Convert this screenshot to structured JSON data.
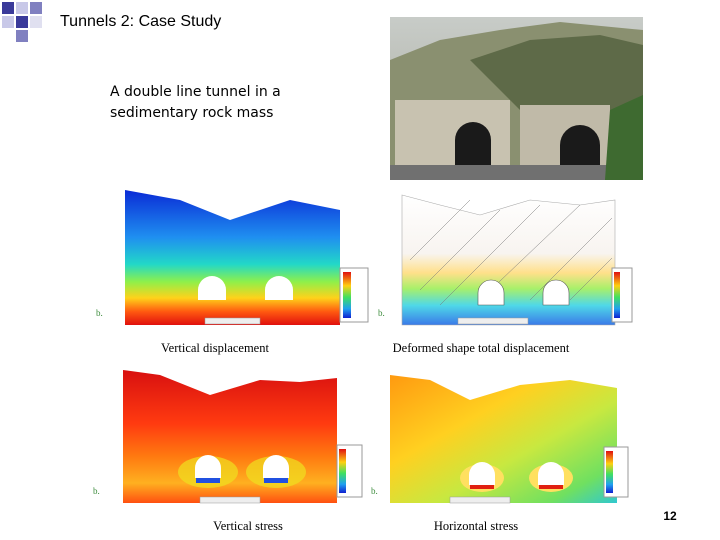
{
  "header": {
    "title": "Tunnels 2: Case Study"
  },
  "body": {
    "text": "A double line tunnel in a sedimentary rock mass"
  },
  "figures": [
    {
      "caption": "Vertical displacement",
      "tag": "b."
    },
    {
      "caption": "Deformed shape total displacement",
      "tag": "b."
    },
    {
      "caption": "Vertical stress",
      "tag": "b."
    },
    {
      "caption": "Horizontal stress",
      "tag": "b."
    }
  ],
  "footer": {
    "page": "12"
  }
}
